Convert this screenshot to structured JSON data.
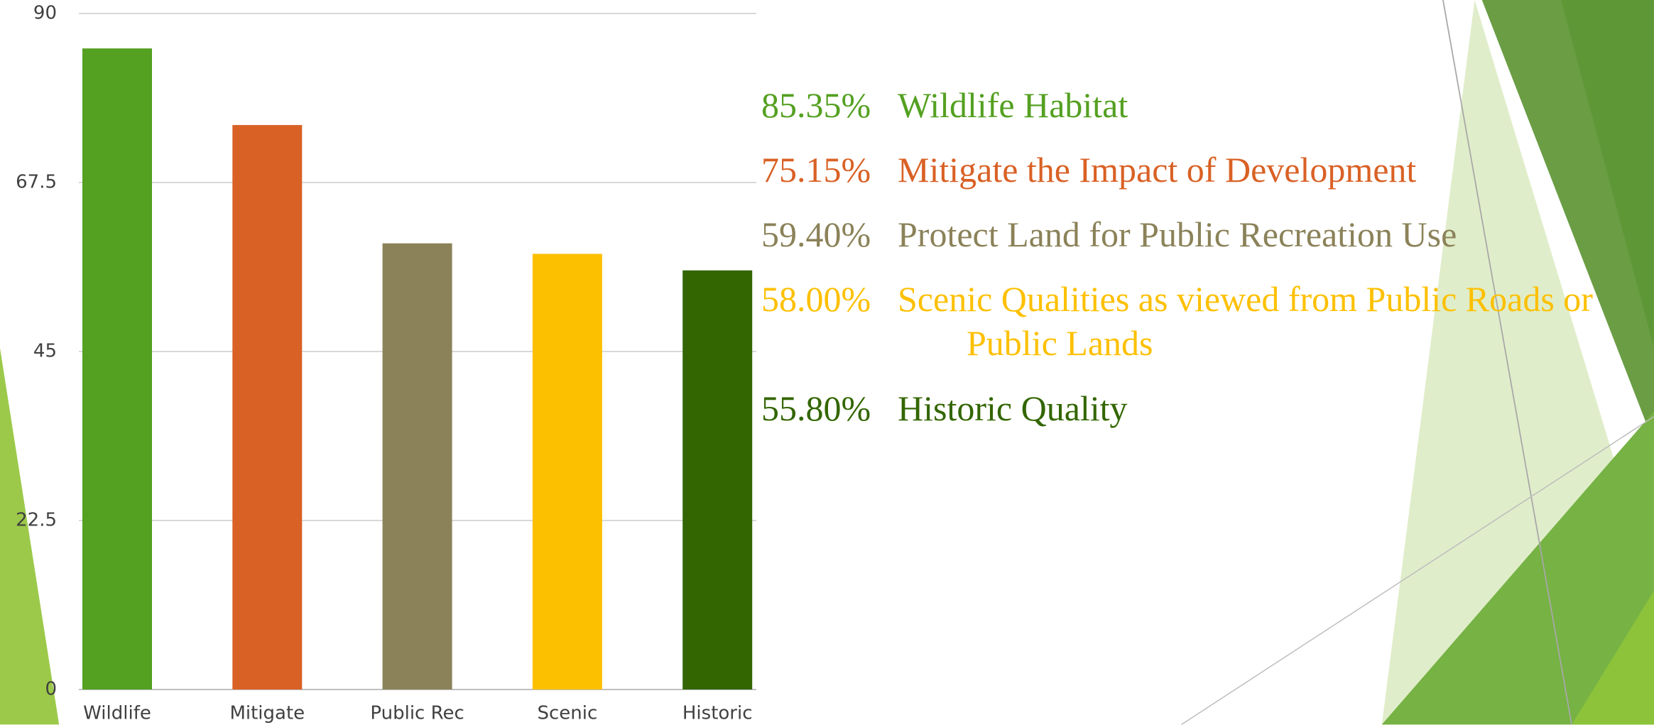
{
  "chart_data": {
    "type": "bar",
    "categories": [
      "Wildlife",
      "Mitigate",
      "Public Rec",
      "Scenic",
      "Historic"
    ],
    "values": [
      85.35,
      75.15,
      59.4,
      58.0,
      55.8
    ],
    "value_labels": [
      "85.35%",
      "75.15%",
      "59.40%",
      "58.00%",
      "55.80%"
    ],
    "descriptions": [
      "Wildlife Habitat",
      "Mitigate the Impact of Development",
      "Protect Land for Public Recreation Use",
      "Scenic Qualities as viewed from Public Roads or Public Lands",
      "Historic Quality"
    ],
    "colors": [
      "#54a021",
      "#d96125",
      "#8b8259",
      "#fdc000",
      "#336600"
    ],
    "ylim": [
      0,
      90
    ],
    "yticks": [
      0,
      22.5,
      45,
      67.5,
      90
    ],
    "grid": true
  }
}
